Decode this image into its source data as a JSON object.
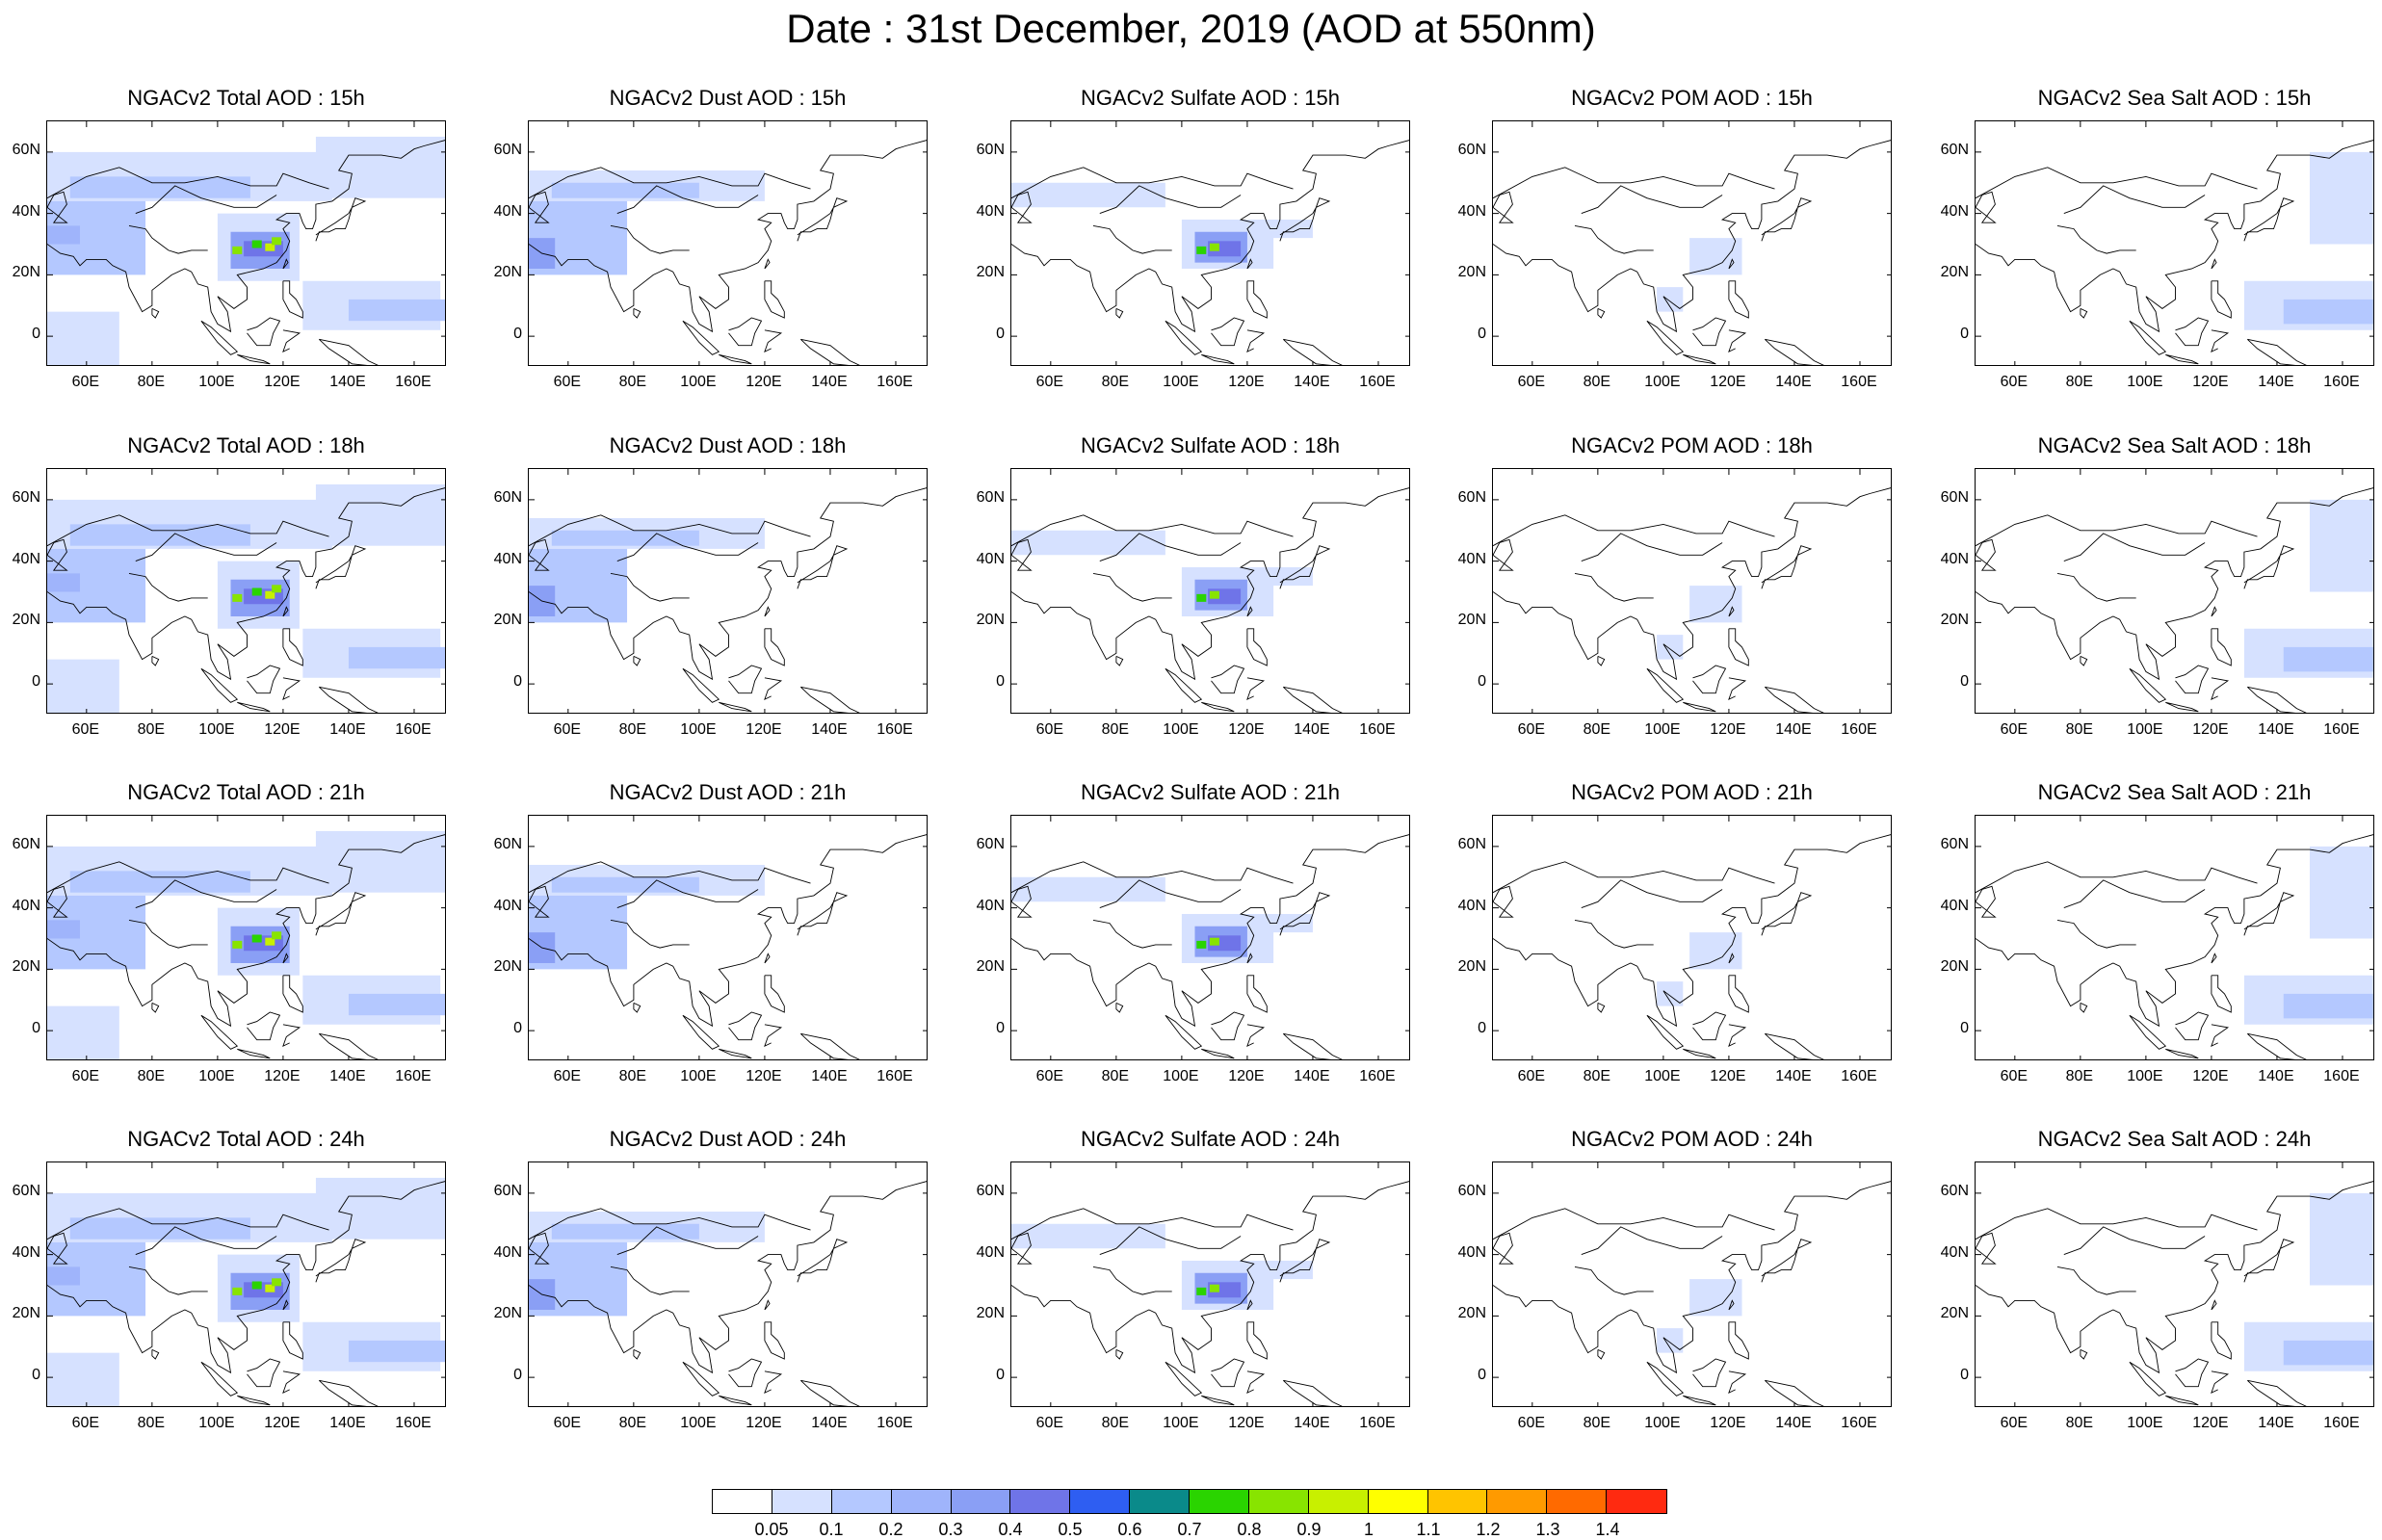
{
  "figure_title": "Date : 31st December, 2019 (AOD at 550nm)",
  "lon_ticks": [
    "60E",
    "80E",
    "100E",
    "120E",
    "140E",
    "160E"
  ],
  "lat_ticks": [
    "60N",
    "40N",
    "20N",
    "0"
  ],
  "rows": [
    {
      "time": "15h",
      "titles": [
        "NGACv2 Total AOD : 15h",
        "NGACv2 Dust AOD : 15h",
        "NGACv2 Sulfate AOD : 15h",
        "NGACv2 POM AOD : 15h",
        "NGACv2 Sea Salt AOD : 15h"
      ]
    },
    {
      "time": "18h",
      "titles": [
        "NGACv2 Total AOD : 18h",
        "NGACv2 Dust AOD : 18h",
        "NGACv2 Sulfate AOD : 18h",
        "NGACv2 POM AOD : 18h",
        "NGACv2 Sea Salt AOD : 18h"
      ]
    },
    {
      "time": "21h",
      "titles": [
        "NGACv2 Total AOD : 21h",
        "NGACv2 Dust AOD : 21h",
        "NGACv2 Sulfate AOD : 21h",
        "NGACv2 POM AOD : 21h",
        "NGACv2 Sea Salt AOD : 21h"
      ]
    },
    {
      "time": "24h",
      "titles": [
        "NGACv2 Total AOD : 24h",
        "NGACv2 Dust AOD : 24h",
        "NGACv2 Sulfate AOD : 24h",
        "NGACv2 POM AOD : 24h",
        "NGACv2 Sea Salt  AOD : 24h"
      ]
    }
  ],
  "colorbar": {
    "labels": [
      "0.05",
      "0.1",
      "0.2",
      "0.3",
      "0.4",
      "0.5",
      "0.6",
      "0.7",
      "0.8",
      "0.9",
      "1",
      "1.1",
      "1.2",
      "1.3",
      "1.4"
    ],
    "colors": [
      "#ffffff",
      "#d6e1ff",
      "#b4c8ff",
      "#9fb4fb",
      "#8a9ff5",
      "#6f74e8",
      "#2e5ef2",
      "#0a8a8a",
      "#2ad400",
      "#88e400",
      "#c8f000",
      "#ffff00",
      "#ffc400",
      "#ff9a00",
      "#ff6a00",
      "#ff2a10"
    ]
  }
}
